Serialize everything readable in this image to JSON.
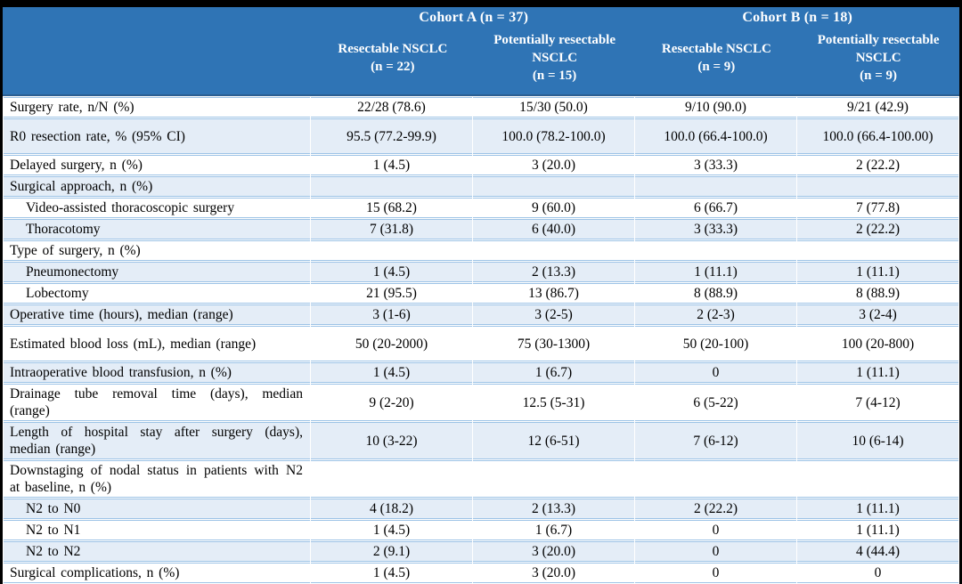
{
  "table": {
    "groups": [
      {
        "label": "Cohort A (n = 37)",
        "span": 2
      },
      {
        "label": "Cohort B (n = 18)",
        "span": 2
      }
    ],
    "columns": [
      {
        "title": "Resectable NSCLC",
        "n": "(n = 22)"
      },
      {
        "title": "Potentially resectable NSCLC",
        "n": "(n = 15)"
      },
      {
        "title": "Resectable NSCLC",
        "n": "(n = 9)"
      },
      {
        "title": "Potentially resectable NSCLC",
        "n": "(n = 9)"
      }
    ],
    "rows": [
      {
        "label": "Surgery rate, n/N (%)",
        "indent": false,
        "tall": false,
        "values": [
          "22/28 (78.6)",
          "15/30 (50.0)",
          "9/10 (90.0)",
          "9/21 (42.9)"
        ]
      },
      {
        "label": "R0 resection rate, % (95% CI)",
        "indent": false,
        "tall": true,
        "values": [
          "95.5 (77.2-99.9)",
          "100.0 (78.2-100.0)",
          "100.0 (66.4-100.0)",
          "100.0 (66.4-100.00)"
        ]
      },
      {
        "label": "Delayed surgery, n (%)",
        "indent": false,
        "tall": false,
        "values": [
          "1 (4.5)",
          "3 (20.0)",
          "3 (33.3)",
          "2 (22.2)"
        ]
      },
      {
        "label": "Surgical approach, n (%)",
        "indent": false,
        "tall": false,
        "values": [
          "",
          "",
          "",
          ""
        ]
      },
      {
        "label": "Video-assisted thoracoscopic surgery",
        "indent": true,
        "tall": false,
        "values": [
          "15 (68.2)",
          "9 (60.0)",
          "6 (66.7)",
          "7 (77.8)"
        ]
      },
      {
        "label": "Thoracotomy",
        "indent": true,
        "tall": false,
        "values": [
          "7 (31.8)",
          "6 (40.0)",
          "3 (33.3)",
          "2 (22.2)"
        ]
      },
      {
        "label": "Type of surgery, n (%)",
        "indent": false,
        "tall": false,
        "values": [
          "",
          "",
          "",
          ""
        ]
      },
      {
        "label": "Pneumonectomy",
        "indent": true,
        "tall": false,
        "values": [
          "1 (4.5)",
          "2 (13.3)",
          "1 (11.1)",
          "1 (11.1)"
        ]
      },
      {
        "label": "Lobectomy",
        "indent": true,
        "tall": false,
        "values": [
          "21 (95.5)",
          "13 (86.7)",
          "8 (88.9)",
          "8 (88.9)"
        ]
      },
      {
        "label": "Operative time (hours), median (range)",
        "indent": false,
        "tall": false,
        "values": [
          "3 (1-6)",
          "3 (2-5)",
          "2 (2-3)",
          "3 (2-4)"
        ]
      },
      {
        "label": "Estimated blood loss (mL), median (range)",
        "indent": false,
        "tall": true,
        "values": [
          "50 (20-2000)",
          "75 (30-1300)",
          "50 (20-100)",
          "100 (20-800)"
        ]
      },
      {
        "label": "Intraoperative blood transfusion, n (%)",
        "indent": false,
        "tall": false,
        "values": [
          "1 (4.5)",
          "1 (6.7)",
          "0",
          "1 (11.1)"
        ]
      },
      {
        "label": "Drainage tube removal time (days), median (range)",
        "indent": false,
        "tall": true,
        "values": [
          "9 (2-20)",
          "12.5 (5-31)",
          "6 (5-22)",
          "7 (4-12)"
        ]
      },
      {
        "label": "Length of hospital stay after surgery (days), median (range)",
        "indent": false,
        "tall": true,
        "values": [
          "10 (3-22)",
          "12 (6-51)",
          "7 (6-12)",
          "10 (6-14)"
        ]
      },
      {
        "label": "Downstaging of nodal status in patients with N2 at baseline, n (%)",
        "indent": false,
        "tall": true,
        "values": [
          "",
          "",
          "",
          ""
        ]
      },
      {
        "label": "N2 to N0",
        "indent": true,
        "tall": false,
        "values": [
          "4 (18.2)",
          "2 (13.3)",
          "2 (22.2)",
          "1 (11.1)"
        ]
      },
      {
        "label": "N2 to N1",
        "indent": true,
        "tall": false,
        "values": [
          "1 (4.5)",
          "1 (6.7)",
          "0",
          "1 (11.1)"
        ]
      },
      {
        "label": "N2 to N2",
        "indent": true,
        "tall": false,
        "values": [
          "2 (9.1)",
          "3 (20.0)",
          "0",
          "4 (44.4)"
        ]
      },
      {
        "label": "Surgical complications, n (%)",
        "indent": false,
        "tall": false,
        "values": [
          "1 (4.5)",
          "3 (20.0)",
          "0",
          "0"
        ]
      }
    ]
  },
  "colors": {
    "header_bg": "#2F74B5",
    "header_text": "#FFFFFF",
    "shaded_row_bg": "#E4EDF7",
    "row_border": "#9DC3E6",
    "header_rule": "#2B5F92",
    "frame": "#000000",
    "body_text": "#000000"
  }
}
